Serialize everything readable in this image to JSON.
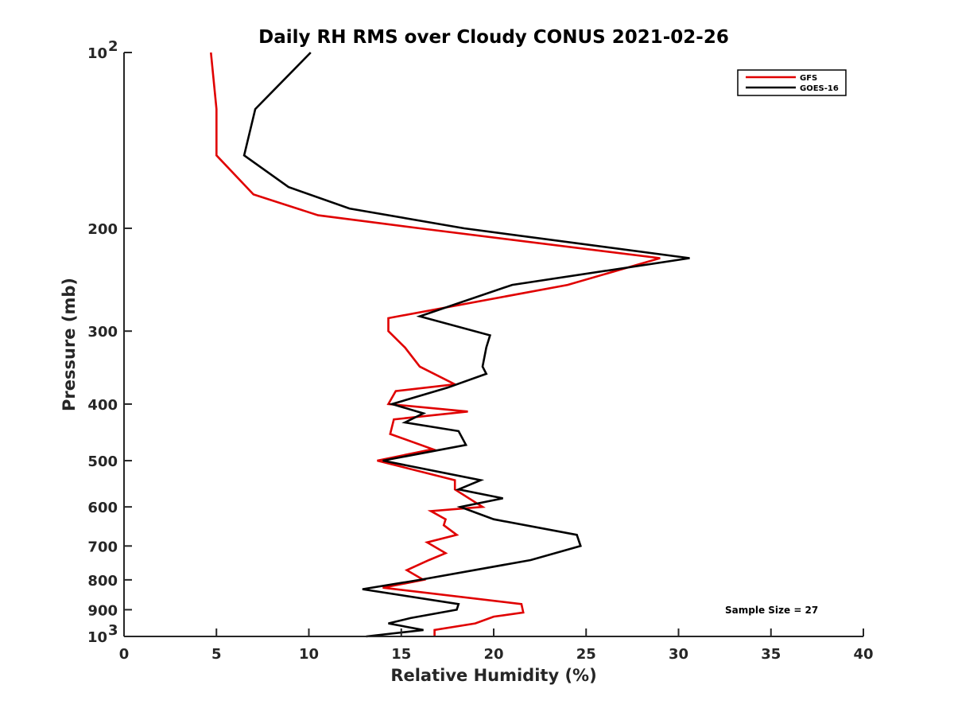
{
  "chart_data": {
    "type": "line",
    "title": "Daily RH RMS over Cloudy CONUS 2021-02-26",
    "xlabel": "Relative Humidity (%)",
    "ylabel": "Pressure (mb)",
    "xlim": [
      0,
      40
    ],
    "ylim": [
      100,
      1000
    ],
    "yscale": "log",
    "y_reversed": true,
    "x_ticks": [
      "0",
      "5",
      "10",
      "15",
      "20",
      "25",
      "30",
      "35",
      "40"
    ],
    "y_ticks": [
      {
        "value": 100,
        "base": "10",
        "exp": "2"
      },
      {
        "value": 200,
        "label": "200"
      },
      {
        "value": 300,
        "label": "300"
      },
      {
        "value": 400,
        "label": "400"
      },
      {
        "value": 500,
        "label": "500"
      },
      {
        "value": 600,
        "label": "600"
      },
      {
        "value": 700,
        "label": "700"
      },
      {
        "value": 800,
        "label": "800"
      },
      {
        "value": 900,
        "label": "900"
      },
      {
        "value": 1000,
        "base": "10",
        "exp": "3"
      }
    ],
    "legend_position": "top-right",
    "grid": false,
    "annotation": "Sample Size = 27",
    "series": [
      {
        "name": "GFS",
        "color": "#e00000",
        "points": [
          [
            4.7,
            100
          ],
          [
            5.0,
            125
          ],
          [
            5.0,
            150
          ],
          [
            7.0,
            175
          ],
          [
            10.5,
            190
          ],
          [
            16.0,
            200
          ],
          [
            29.0,
            225
          ],
          [
            24.0,
            250
          ],
          [
            14.3,
            285
          ],
          [
            14.3,
            300
          ],
          [
            15.2,
            320
          ],
          [
            16.0,
            345
          ],
          [
            17.9,
            370
          ],
          [
            14.7,
            380
          ],
          [
            14.3,
            400
          ],
          [
            18.6,
            412
          ],
          [
            14.6,
            425
          ],
          [
            14.4,
            450
          ],
          [
            16.7,
            478
          ],
          [
            13.7,
            500
          ],
          [
            17.9,
            540
          ],
          [
            17.9,
            560
          ],
          [
            19.4,
            600
          ],
          [
            16.6,
            610
          ],
          [
            17.4,
            630
          ],
          [
            17.3,
            645
          ],
          [
            18.0,
            670
          ],
          [
            16.4,
            690
          ],
          [
            17.4,
            720
          ],
          [
            16.5,
            740
          ],
          [
            15.3,
            770
          ],
          [
            16.2,
            800
          ],
          [
            14.0,
            825
          ],
          [
            21.5,
            880
          ],
          [
            21.6,
            910
          ],
          [
            20.0,
            925
          ],
          [
            19.0,
            950
          ],
          [
            16.8,
            975
          ],
          [
            16.8,
            1000
          ]
        ]
      },
      {
        "name": "GOES-16",
        "color": "#000000",
        "points": [
          [
            10.1,
            100
          ],
          [
            7.1,
            125
          ],
          [
            6.5,
            150
          ],
          [
            8.9,
            170
          ],
          [
            12.2,
            185
          ],
          [
            18.4,
            200
          ],
          [
            30.6,
            225
          ],
          [
            21.0,
            250
          ],
          [
            16.0,
            283
          ],
          [
            19.8,
            305
          ],
          [
            19.6,
            320
          ],
          [
            19.4,
            345
          ],
          [
            19.6,
            355
          ],
          [
            17.5,
            375
          ],
          [
            14.5,
            400
          ],
          [
            16.2,
            415
          ],
          [
            15.2,
            430
          ],
          [
            18.1,
            445
          ],
          [
            18.5,
            470
          ],
          [
            14.0,
            500
          ],
          [
            19.3,
            540
          ],
          [
            18.1,
            560
          ],
          [
            20.5,
            580
          ],
          [
            18.2,
            600
          ],
          [
            20.0,
            630
          ],
          [
            24.5,
            670
          ],
          [
            24.7,
            700
          ],
          [
            22.0,
            740
          ],
          [
            16.0,
            800
          ],
          [
            12.9,
            830
          ],
          [
            18.1,
            880
          ],
          [
            18.0,
            900
          ],
          [
            15.5,
            930
          ],
          [
            14.3,
            950
          ],
          [
            16.2,
            975
          ],
          [
            13.1,
            1000
          ]
        ]
      }
    ]
  }
}
